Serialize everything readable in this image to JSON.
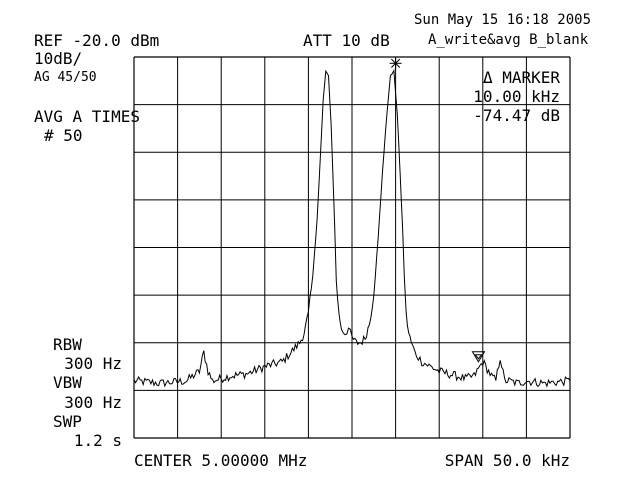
{
  "header": {
    "timestamp": "Sun May 15 16:18 2005",
    "ref_level": "REF -20.0 dBm",
    "attenuation": "ATT 10 dB",
    "trace_mode": "A_write&avg B_blank",
    "scale": "10dB/",
    "avg_count": "AG 45/50",
    "avg_times_label": "AVG A TIMES",
    "avg_times_value": "# 50"
  },
  "marker": {
    "label": "Δ MARKER",
    "freq": "10.00 kHz",
    "level": "-74.47 dB"
  },
  "settings": {
    "rbw_label": "RBW",
    "rbw_value": "300 Hz",
    "vbw_label": "VBW",
    "vbw_value": "300 Hz",
    "swp_label": "SWP",
    "swp_value": "1.2 s"
  },
  "footer": {
    "center": "CENTER 5.00000 MHz",
    "span": "SPAN 50.0 kHz"
  },
  "chart_data": {
    "type": "line",
    "title": "",
    "xlabel": "",
    "ylabel": "",
    "x_unit": "kHz offset from center",
    "xlim": [
      -25,
      25
    ],
    "ylim": [
      -100,
      -20
    ],
    "grid": true,
    "grid_divisions": {
      "x": 10,
      "y": 8
    },
    "series": [
      {
        "x": [
          -25,
          -22,
          -19,
          -17.5,
          -17,
          -16.5,
          -16,
          -14,
          -12,
          -10,
          -8,
          -7,
          -6,
          -5.5,
          -5,
          -4.5,
          -4,
          -3.6,
          -3.3,
          -3.0,
          -2.7,
          -2.4,
          -2.2,
          -2.0,
          -1.8,
          -1.5,
          -1.2,
          -0.8,
          -0.4,
          0,
          0.5,
          1,
          1.5,
          2,
          2.5,
          3,
          3.5,
          4,
          4.4,
          4.8,
          5.2,
          5.5,
          5.8,
          6.0,
          6.2,
          6.5,
          6.8,
          7.2,
          7.6,
          8,
          8.5,
          9,
          10,
          11,
          12,
          13,
          14,
          15,
          16,
          16.5,
          17,
          17.5,
          18,
          19,
          20,
          22,
          25
        ],
        "y": [
          -88,
          -88.5,
          -88,
          -86,
          -82,
          -86,
          -88,
          -87,
          -86.5,
          -85,
          -84,
          -82,
          -80,
          -78,
          -74,
          -66,
          -54,
          -40,
          -29,
          -23,
          -24,
          -34,
          -44,
          -55,
          -67,
          -74,
          -77,
          -78,
          -77,
          -79,
          -80,
          -80,
          -79,
          -76,
          -70,
          -58,
          -44,
          -32,
          -24,
          -23,
          -32,
          -44,
          -56,
          -66,
          -74,
          -78,
          -80,
          -82,
          -83,
          -84,
          -84.5,
          -85,
          -86,
          -86.5,
          -87,
          -87.5,
          -87,
          -84,
          -87,
          -88,
          -83,
          -88,
          -88,
          -88.5,
          -88,
          -88.5,
          -88
        ]
      }
    ],
    "marker_positions": [
      {
        "symbol": "asterisk",
        "x": 5.0,
        "y": -23
      },
      {
        "symbol": "triangle",
        "x": 14.5,
        "y": -84
      }
    ]
  }
}
